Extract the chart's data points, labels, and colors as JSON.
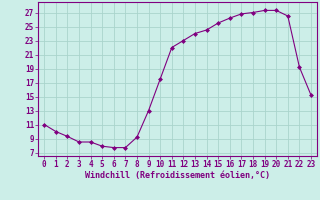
{
  "x": [
    0,
    1,
    2,
    3,
    4,
    5,
    6,
    7,
    8,
    9,
    10,
    11,
    12,
    13,
    14,
    15,
    16,
    17,
    18,
    19,
    20,
    21,
    22,
    23
  ],
  "y": [
    11,
    10,
    9.3,
    8.5,
    8.5,
    7.9,
    7.7,
    7.7,
    9.2,
    13.0,
    17.5,
    22.0,
    23.0,
    24.0,
    24.5,
    25.5,
    26.2,
    26.8,
    27.0,
    27.3,
    27.3,
    26.5,
    19.2,
    15.2
  ],
  "line_color": "#800080",
  "marker": "D",
  "marker_size": 2.0,
  "bg_color": "#cceee8",
  "grid_color": "#aad4cc",
  "xlabel": "Windchill (Refroidissement éolien,°C)",
  "xlim": [
    -0.5,
    23.5
  ],
  "ylim": [
    6.5,
    28.5
  ],
  "yticks": [
    7,
    9,
    11,
    13,
    15,
    17,
    19,
    21,
    23,
    25,
    27
  ],
  "xticks": [
    0,
    1,
    2,
    3,
    4,
    5,
    6,
    7,
    8,
    9,
    10,
    11,
    12,
    13,
    14,
    15,
    16,
    17,
    18,
    19,
    20,
    21,
    22,
    23
  ],
  "tick_color": "#800080",
  "label_fontsize": 6.0,
  "tick_fontsize": 5.5
}
